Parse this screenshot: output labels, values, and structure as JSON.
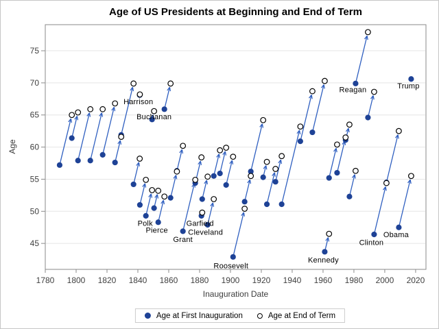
{
  "chart_data": {
    "type": "scatter",
    "title": "Age of US Presidents at Beginning and End of Term",
    "xlabel": "Inauguration Date",
    "ylabel": "Age",
    "xlim": [
      1780,
      2026.7
    ],
    "ylim": [
      40.96,
      79.06
    ],
    "x_ticks": [
      1780,
      1800,
      1820,
      1840,
      1860,
      1880,
      1900,
      1920,
      1940,
      1960,
      1980,
      2000,
      2020
    ],
    "y_ticks": [
      45,
      50,
      55,
      60,
      65,
      70,
      75
    ],
    "grid": "horizontal",
    "colors": {
      "marker": "#1e4296",
      "line": "#2f5fc0",
      "open_stroke": "#000000",
      "grid": "#e5e5e5",
      "frame": "#8a8a8a",
      "tick_label": "#3f3f3f",
      "figure_border": "#c6c6c6",
      "legend_border": "#cccccc"
    },
    "legend": {
      "position": "bottom-center",
      "entries": [
        {
          "marker": "filled-circle",
          "label": "Age at First Inauguration"
        },
        {
          "marker": "open-circle",
          "label": "Age at End of Term"
        }
      ]
    },
    "series": [
      {
        "name": "washington",
        "start": {
          "year": 1789.3,
          "age": 57.2
        },
        "end": {
          "year": 1797.2,
          "age": 65.0
        }
      },
      {
        "name": "j-adams",
        "start": {
          "year": 1797.2,
          "age": 61.4
        },
        "end": {
          "year": 1801.2,
          "age": 65.4
        }
      },
      {
        "name": "jefferson",
        "start": {
          "year": 1801.2,
          "age": 57.9
        },
        "end": {
          "year": 1809.2,
          "age": 65.9
        }
      },
      {
        "name": "madison",
        "start": {
          "year": 1809.2,
          "age": 57.9
        },
        "end": {
          "year": 1817.2,
          "age": 65.9
        }
      },
      {
        "name": "monroe",
        "start": {
          "year": 1817.2,
          "age": 58.8
        },
        "end": {
          "year": 1825.2,
          "age": 66.8
        }
      },
      {
        "name": "jq-adams",
        "start": {
          "year": 1825.2,
          "age": 57.6
        },
        "end": {
          "year": 1829.2,
          "age": 61.6
        }
      },
      {
        "name": "jackson",
        "start": {
          "year": 1829.2,
          "age": 61.9
        },
        "end": {
          "year": 1837.2,
          "age": 69.9
        }
      },
      {
        "name": "van-buren",
        "start": {
          "year": 1837.2,
          "age": 54.2
        },
        "end": {
          "year": 1841.2,
          "age": 58.2
        }
      },
      {
        "name": "wh-harrison",
        "label": "Harrison",
        "label_dx": -2,
        "label_dy": 10,
        "start": {
          "year": 1841.2,
          "age": 68.1
        },
        "end": {
          "year": 1841.3,
          "age": 68.2
        }
      },
      {
        "name": "tyler",
        "start": {
          "year": 1841.3,
          "age": 51.0
        },
        "end": {
          "year": 1845.2,
          "age": 54.9
        }
      },
      {
        "name": "polk",
        "label": "Polk",
        "label_dx": -1,
        "label_dy": 11,
        "start": {
          "year": 1845.2,
          "age": 49.3
        },
        "end": {
          "year": 1849.2,
          "age": 53.3
        }
      },
      {
        "name": "taylor",
        "start": {
          "year": 1849.2,
          "age": 64.3
        },
        "end": {
          "year": 1850.5,
          "age": 65.6
        }
      },
      {
        "name": "fillmore",
        "start": {
          "year": 1850.5,
          "age": 50.5
        },
        "end": {
          "year": 1853.2,
          "age": 53.2
        }
      },
      {
        "name": "pierce",
        "label": "Pierce",
        "label_dx": -2,
        "label_dy": 12,
        "start": {
          "year": 1853.2,
          "age": 48.3
        },
        "end": {
          "year": 1857.2,
          "age": 52.3
        }
      },
      {
        "name": "buchanan",
        "label": "Buchanan",
        "label_dx": -15,
        "label_dy": 11,
        "start": {
          "year": 1857.2,
          "age": 65.9
        },
        "end": {
          "year": 1861.2,
          "age": 69.9
        }
      },
      {
        "name": "lincoln",
        "start": {
          "year": 1861.2,
          "age": 52.1
        },
        "end": {
          "year": 1865.3,
          "age": 56.2
        }
      },
      {
        "name": "a-johnson",
        "start": {
          "year": 1865.3,
          "age": 56.3
        },
        "end": {
          "year": 1869.2,
          "age": 60.2
        }
      },
      {
        "name": "grant",
        "label": "Grant",
        "label_dx": 0,
        "label_dy": 12,
        "start": {
          "year": 1869.2,
          "age": 46.9
        },
        "end": {
          "year": 1877.2,
          "age": 54.9
        }
      },
      {
        "name": "hayes",
        "start": {
          "year": 1877.2,
          "age": 54.4
        },
        "end": {
          "year": 1881.2,
          "age": 58.4
        }
      },
      {
        "name": "garfield",
        "label": "Garfield",
        "label_dx": -2,
        "label_dy": 11,
        "start": {
          "year": 1881.2,
          "age": 49.3
        },
        "end": {
          "year": 1881.7,
          "age": 49.8
        }
      },
      {
        "name": "arthur",
        "start": {
          "year": 1881.7,
          "age": 51.9
        },
        "end": {
          "year": 1885.2,
          "age": 55.4
        }
      },
      {
        "name": "cleveland-1",
        "label": "Cleveland",
        "label_dx": -3,
        "label_dy": 11,
        "start": {
          "year": 1885.2,
          "age": 47.9
        },
        "end": {
          "year": 1889.2,
          "age": 51.9
        }
      },
      {
        "name": "b-harrison",
        "start": {
          "year": 1889.2,
          "age": 55.5
        },
        "end": {
          "year": 1893.2,
          "age": 59.5
        }
      },
      {
        "name": "cleveland-2",
        "start": {
          "year": 1893.2,
          "age": 55.9
        },
        "end": {
          "year": 1897.2,
          "age": 59.9
        }
      },
      {
        "name": "mckinley",
        "start": {
          "year": 1897.2,
          "age": 54.1
        },
        "end": {
          "year": 1901.7,
          "age": 58.5
        }
      },
      {
        "name": "t-roosevelt",
        "label": "Roosevelt",
        "label_dx": -3,
        "label_dy": 13,
        "start": {
          "year": 1901.7,
          "age": 42.9
        },
        "end": {
          "year": 1909.2,
          "age": 50.4
        }
      },
      {
        "name": "taft",
        "start": {
          "year": 1909.2,
          "age": 51.5
        },
        "end": {
          "year": 1913.2,
          "age": 55.5
        }
      },
      {
        "name": "wilson",
        "start": {
          "year": 1913.2,
          "age": 56.2
        },
        "end": {
          "year": 1921.2,
          "age": 64.2
        }
      },
      {
        "name": "harding",
        "start": {
          "year": 1921.2,
          "age": 55.3
        },
        "end": {
          "year": 1923.6,
          "age": 57.7
        }
      },
      {
        "name": "coolidge",
        "start": {
          "year": 1923.6,
          "age": 51.1
        },
        "end": {
          "year": 1929.2,
          "age": 56.6
        }
      },
      {
        "name": "hoover",
        "start": {
          "year": 1929.2,
          "age": 54.6
        },
        "end": {
          "year": 1933.2,
          "age": 58.6
        }
      },
      {
        "name": "f-roosevelt",
        "start": {
          "year": 1933.2,
          "age": 51.1
        },
        "end": {
          "year": 1945.3,
          "age": 63.2
        }
      },
      {
        "name": "truman",
        "start": {
          "year": 1945.3,
          "age": 60.9
        },
        "end": {
          "year": 1953.1,
          "age": 68.7
        }
      },
      {
        "name": "eisenhower",
        "start": {
          "year": 1953.1,
          "age": 62.3
        },
        "end": {
          "year": 1961.1,
          "age": 70.3
        }
      },
      {
        "name": "kennedy",
        "label": "Kennedy",
        "label_dx": -2,
        "label_dy": 12,
        "start": {
          "year": 1961.1,
          "age": 43.7
        },
        "end": {
          "year": 1963.9,
          "age": 46.5
        }
      },
      {
        "name": "lb-johnson",
        "start": {
          "year": 1963.9,
          "age": 55.2
        },
        "end": {
          "year": 1969.1,
          "age": 60.4
        }
      },
      {
        "name": "nixon",
        "start": {
          "year": 1969.1,
          "age": 56.0
        },
        "end": {
          "year": 1974.6,
          "age": 61.5
        }
      },
      {
        "name": "ford",
        "start": {
          "year": 1974.6,
          "age": 61.1
        },
        "end": {
          "year": 1977.1,
          "age": 63.5
        }
      },
      {
        "name": "carter",
        "start": {
          "year": 1977.1,
          "age": 52.3
        },
        "end": {
          "year": 1981.1,
          "age": 56.3
        }
      },
      {
        "name": "reagan",
        "label": "Reagan",
        "label_dx": -4,
        "label_dy": 9,
        "start": {
          "year": 1981.1,
          "age": 69.9
        },
        "end": {
          "year": 1989.1,
          "age": 77.9
        }
      },
      {
        "name": "ghw-bush",
        "start": {
          "year": 1989.1,
          "age": 64.6
        },
        "end": {
          "year": 1993.1,
          "age": 68.6
        }
      },
      {
        "name": "clinton",
        "label": "Clinton",
        "label_dx": -4,
        "label_dy": 12,
        "start": {
          "year": 1993.1,
          "age": 46.4
        },
        "end": {
          "year": 2001.1,
          "age": 54.4
        }
      },
      {
        "name": "gw-bush",
        "start": {
          "year": 2001.1,
          "age": 54.5
        },
        "end": {
          "year": 2009.1,
          "age": 62.5
        }
      },
      {
        "name": "obama",
        "label": "Obama",
        "label_dx": -4,
        "label_dy": 11,
        "start": {
          "year": 2009.1,
          "age": 47.5
        },
        "end": {
          "year": 2017.1,
          "age": 55.5
        }
      },
      {
        "name": "trump",
        "label": "Trump",
        "label_dx": -4,
        "label_dy": 10,
        "start": {
          "year": 2017.1,
          "age": 70.6
        },
        "end": null
      }
    ]
  }
}
